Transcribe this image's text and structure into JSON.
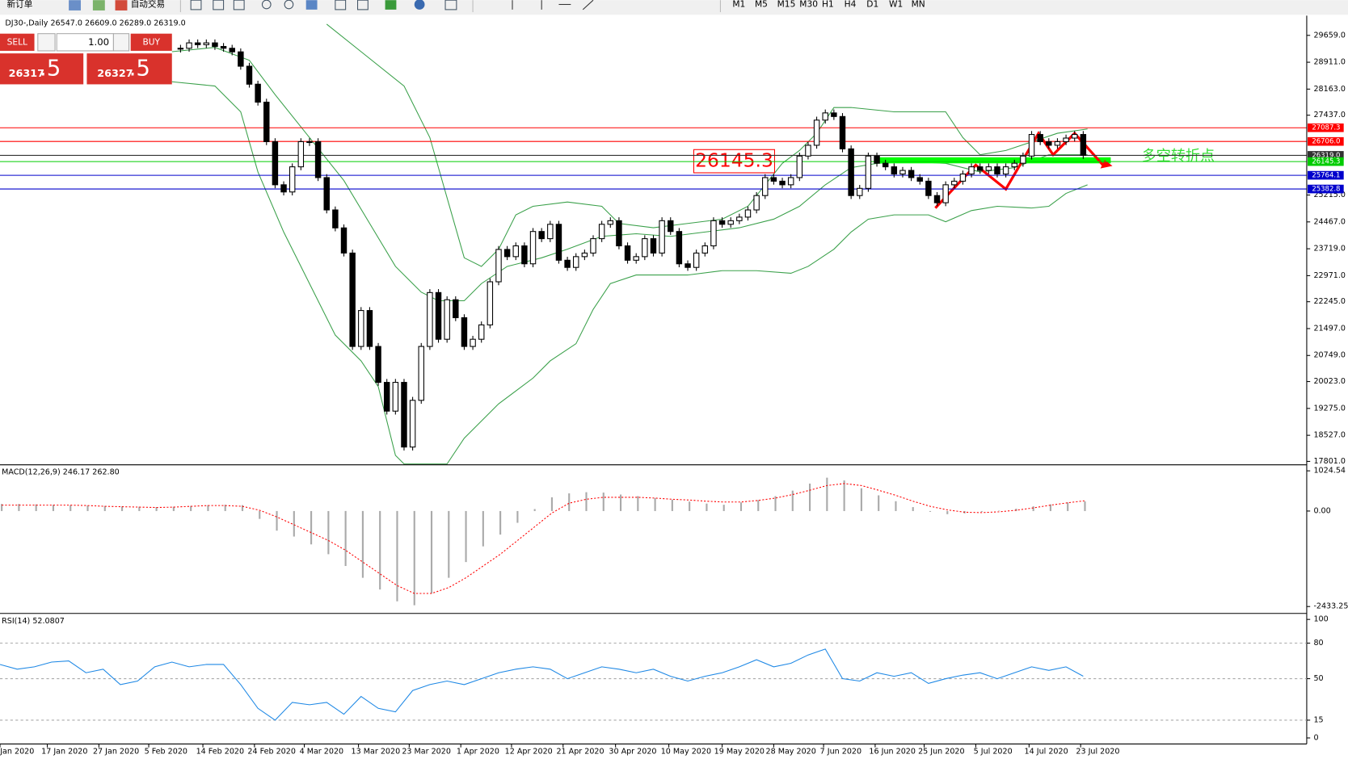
{
  "toolbar": {
    "new_order": "新订单",
    "auto_trading": "自动交易",
    "timeframes": [
      "M1",
      "M5",
      "M15",
      "M30",
      "H1",
      "H4",
      "D1",
      "W1",
      "MN"
    ]
  },
  "trade_panel": {
    "sell": "SELL",
    "lots": "1.00",
    "buy": "BUY",
    "sell_price": "26317",
    "sell_pips": ".5",
    "buy_price": "26327",
    "buy_pips": ".5"
  },
  "chart_data": [
    {
      "type": "candlestick",
      "title": "DJ30-,Daily 26547.0 26609.0 26289.0 26319.0",
      "dates": [
        "Jan 2020",
        "17 Jan 2020",
        "27 Jan 2020",
        "5 Feb 2020",
        "14 Feb 2020",
        "24 Feb 2020",
        "4 Mar 2020",
        "13 Mar 2020",
        "23 Mar 2020",
        "1 Apr 2020",
        "12 Apr 2020",
        "21 Apr 2020",
        "30 Apr 2020",
        "10 May 2020",
        "19 May 2020",
        "28 May 2020",
        "7 Jun 2020",
        "16 Jun 2020",
        "25 Jun 2020",
        "5 Jul 2020",
        "14 Jul 2020",
        "23 Jul 2020"
      ],
      "close": [
        29300,
        29450,
        29400,
        29450,
        29350,
        29300,
        29200,
        28800,
        28300,
        27800,
        26700,
        25500,
        25300,
        26000,
        26700,
        26700,
        25700,
        24800,
        24300,
        23600,
        21000,
        22000,
        21000,
        20000,
        19200,
        20000,
        18200,
        19500,
        21000,
        22500,
        21200,
        22300,
        21800,
        21000,
        21200,
        21600,
        22800,
        23700,
        23500,
        23800,
        23300,
        24200,
        24000,
        24400,
        23400,
        23200,
        23500,
        23600,
        24000,
        24400,
        24500,
        23800,
        23400,
        23500,
        24000,
        23600,
        24500,
        24200,
        23300,
        23200,
        23600,
        23800,
        24500,
        24400,
        24500,
        24600,
        24800,
        25200,
        25700,
        25600,
        25500,
        25700,
        26300,
        26600,
        27300,
        27500,
        27400,
        26500,
        25200,
        25400,
        26300,
        26100,
        26000,
        25800,
        25900,
        25700,
        25600,
        25200,
        25000,
        25500,
        25600,
        25800,
        26000,
        25900,
        26000,
        25800,
        26000,
        26100,
        26300,
        26900,
        26700,
        26600,
        26700,
        26800,
        26900,
        26319
      ],
      "ylim": [
        17801,
        29659
      ],
      "yticks": [
        {
          "value": 29659,
          "label": "29659.0"
        },
        {
          "value": 28911,
          "label": "28911.0"
        },
        {
          "value": 28163,
          "label": "28163.0"
        },
        {
          "value": 27437,
          "label": "27437.0"
        },
        {
          "value": 25215,
          "label": "25215.0"
        },
        {
          "value": 24467,
          "label": "24467.0"
        },
        {
          "value": 23719,
          "label": "23719.0"
        },
        {
          "value": 22971,
          "label": "22971.0"
        },
        {
          "value": 22245,
          "label": "22245.0"
        },
        {
          "value": 21497,
          "label": "21497.0"
        },
        {
          "value": 20749,
          "label": "20749.0"
        },
        {
          "value": 20023,
          "label": "20023.0"
        },
        {
          "value": 19275,
          "label": "19275.0"
        },
        {
          "value": 18527,
          "label": "18527.0"
        },
        {
          "value": 17801,
          "label": "17801.0"
        }
      ],
      "levels": [
        {
          "value": 27087.3,
          "color": "#ff0000"
        },
        {
          "value": 26706,
          "label": "26706.0",
          "color": "#ff0000"
        },
        {
          "value": 26319,
          "label": "26319.0",
          "color": "#333333"
        },
        {
          "value": 26145.3,
          "color": "#00cc00"
        },
        {
          "value": 25764.1,
          "color": "#0000cc"
        },
        {
          "value": 25382.8,
          "color": "#0000cc"
        }
      ],
      "annotation": "26145.3",
      "annotation_text": "多空转折点"
    },
    {
      "type": "macd",
      "title": "MACD(12,26,9) 246.17 262.80",
      "histogram": [
        180,
        180,
        170,
        160,
        150,
        140,
        130,
        120,
        110,
        100,
        110,
        130,
        150,
        160,
        150,
        -200,
        -500,
        -650,
        -850,
        -1100,
        -1400,
        -1700,
        -2000,
        -2300,
        -2400,
        -2100,
        -1700,
        -1300,
        -900,
        -600,
        -300,
        50,
        350,
        450,
        480,
        470,
        420,
        380,
        330,
        290,
        240,
        190,
        160,
        220,
        280,
        380,
        520,
        700,
        850,
        780,
        580,
        400,
        250,
        100,
        -20,
        -80,
        -60,
        -20,
        10,
        60,
        120,
        170,
        220,
        246.17
      ],
      "signal": [
        150,
        150,
        150,
        150,
        150,
        140,
        120,
        110,
        100,
        90,
        100,
        120,
        140,
        140,
        120,
        20,
        -150,
        -350,
        -550,
        -750,
        -1000,
        -1300,
        -1600,
        -1900,
        -2100,
        -2100,
        -1950,
        -1700,
        -1400,
        -1100,
        -750,
        -400,
        -50,
        200,
        300,
        350,
        350,
        350,
        330,
        300,
        280,
        250,
        230,
        230,
        270,
        330,
        420,
        530,
        650,
        700,
        650,
        530,
        400,
        250,
        120,
        30,
        -30,
        -40,
        -20,
        20,
        80,
        150,
        210,
        262.8
      ],
      "ylim": [
        -2433.25,
        1024.54
      ],
      "yticks": [
        1024.54,
        {
          "value": 0,
          "label": "0.00"
        },
        -2433.25
      ]
    },
    {
      "type": "rsi",
      "title": "RSI(14) 52.0807",
      "values": [
        62,
        58,
        60,
        64,
        65,
        55,
        58,
        45,
        48,
        60,
        64,
        60,
        62,
        62,
        45,
        25,
        15,
        30,
        28,
        30,
        20,
        35,
        25,
        22,
        40,
        45,
        48,
        45,
        50,
        55,
        58,
        60,
        58,
        50,
        55,
        60,
        58,
        55,
        58,
        52,
        48,
        52,
        55,
        60,
        66,
        60,
        63,
        70,
        75,
        50,
        48,
        55,
        52,
        55,
        46,
        50,
        53,
        55,
        50,
        55,
        60,
        57,
        60,
        52.0807
      ],
      "ylim": [
        0,
        100
      ],
      "yticks": [
        100,
        80,
        50,
        15,
        0
      ],
      "levels": [
        80,
        50,
        15
      ]
    }
  ]
}
